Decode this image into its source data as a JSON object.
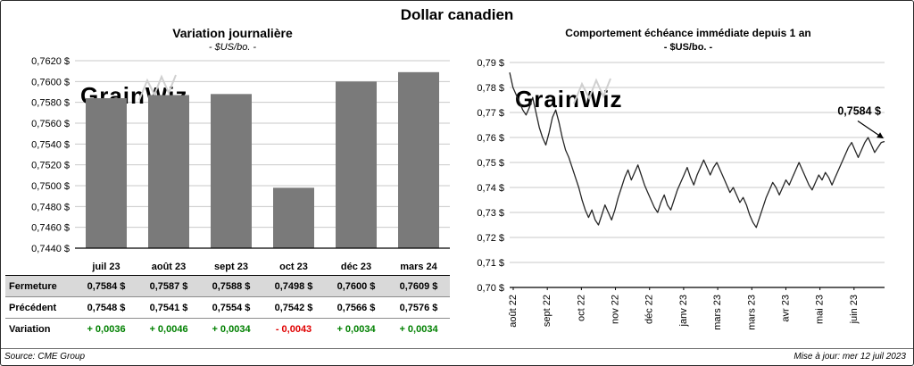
{
  "page_title": "Dollar canadien",
  "watermark": "GrainWiz",
  "colors": {
    "positive": "#008000",
    "negative": "#e00000",
    "bar": "#7a7a7a",
    "grid": "#c9c9c9",
    "line": "#262626",
    "table_shade": "#d9d9d9",
    "watermark": "#d6d6d6"
  },
  "chart_data": [
    {
      "type": "bar",
      "title": "Variation journalière",
      "subtitle": "- $US/bo. -",
      "categories": [
        "juil 23",
        "août 23",
        "sept 23",
        "oct 23",
        "déc 23",
        "mars 24"
      ],
      "values": [
        0.7584,
        0.7587,
        0.7588,
        0.7498,
        0.76,
        0.7609
      ],
      "ylim": [
        0.744,
        0.762
      ],
      "ytick_step": 0.002,
      "ytick_labels": [
        "0,7620 $",
        "0,7600 $",
        "0,7580 $",
        "0,7560 $",
        "0,7540 $",
        "0,7520 $",
        "0,7500 $",
        "0,7480 $",
        "0,7460 $",
        "0,7440 $"
      ],
      "bar_color": "#7a7a7a",
      "grid": true,
      "legend": "none"
    },
    {
      "type": "line",
      "title": "Comportement échéance immédiate depuis 1 an",
      "subtitle": "- $US/bo. -",
      "x_labels": [
        "août 22",
        "sept 22",
        "oct 22",
        "nov 22",
        "déc 22",
        "janv 23",
        "mars 23",
        "mars 23",
        "avr 23",
        "mai 23",
        "juin 23"
      ],
      "ylim": [
        0.7,
        0.79
      ],
      "ytick_step": 0.01,
      "ytick_labels": [
        "0,79 $",
        "0,78 $",
        "0,77 $",
        "0,76 $",
        "0,75 $",
        "0,74 $",
        "0,73 $",
        "0,72 $",
        "0,71 $",
        "0,70 $"
      ],
      "line_color": "#262626",
      "grid": true,
      "legend": "none",
      "annotation": {
        "text": "0,7584 $",
        "value": 0.7584
      },
      "values": [
        0.786,
        0.78,
        0.777,
        0.774,
        0.771,
        0.769,
        0.772,
        0.776,
        0.77,
        0.764,
        0.76,
        0.757,
        0.762,
        0.768,
        0.771,
        0.766,
        0.76,
        0.755,
        0.752,
        0.748,
        0.744,
        0.74,
        0.735,
        0.731,
        0.728,
        0.731,
        0.727,
        0.725,
        0.729,
        0.733,
        0.73,
        0.727,
        0.731,
        0.736,
        0.74,
        0.744,
        0.747,
        0.743,
        0.746,
        0.749,
        0.745,
        0.741,
        0.738,
        0.735,
        0.732,
        0.73,
        0.734,
        0.737,
        0.733,
        0.731,
        0.735,
        0.739,
        0.742,
        0.745,
        0.748,
        0.744,
        0.741,
        0.745,
        0.748,
        0.751,
        0.748,
        0.745,
        0.748,
        0.75,
        0.747,
        0.744,
        0.741,
        0.738,
        0.74,
        0.737,
        0.734,
        0.736,
        0.733,
        0.729,
        0.726,
        0.724,
        0.728,
        0.732,
        0.736,
        0.739,
        0.742,
        0.74,
        0.737,
        0.74,
        0.743,
        0.741,
        0.744,
        0.747,
        0.75,
        0.747,
        0.744,
        0.741,
        0.739,
        0.742,
        0.745,
        0.743,
        0.746,
        0.744,
        0.741,
        0.744,
        0.747,
        0.75,
        0.753,
        0.756,
        0.758,
        0.755,
        0.752,
        0.755,
        0.758,
        0.76,
        0.757,
        0.754,
        0.756,
        0.758,
        0.7584
      ]
    }
  ],
  "table": {
    "columns": [
      "juil 23",
      "août 23",
      "sept 23",
      "oct 23",
      "déc 23",
      "mars 24"
    ],
    "rows": [
      {
        "label": "Fermeture",
        "shaded": true,
        "variation": false,
        "values": [
          "0,7584  $",
          "0,7587  $",
          "0,7588  $",
          "0,7498  $",
          "0,7600  $",
          "0,7609  $"
        ]
      },
      {
        "label": "Précédent",
        "shaded": false,
        "variation": false,
        "values": [
          "0,7548  $",
          "0,7541  $",
          "0,7554  $",
          "0,7542  $",
          "0,7566  $",
          "0,7576  $"
        ]
      },
      {
        "label": "Variation",
        "shaded": false,
        "variation": true,
        "values": [
          "+ 0,0036",
          "+ 0,0046",
          "+ 0,0034",
          "- 0,0043",
          "+ 0,0034",
          "+ 0,0034"
        ]
      }
    ]
  },
  "footer": {
    "source": "Source: CME Group",
    "updated": "Mise à jour: mer 12 juil 2023"
  }
}
